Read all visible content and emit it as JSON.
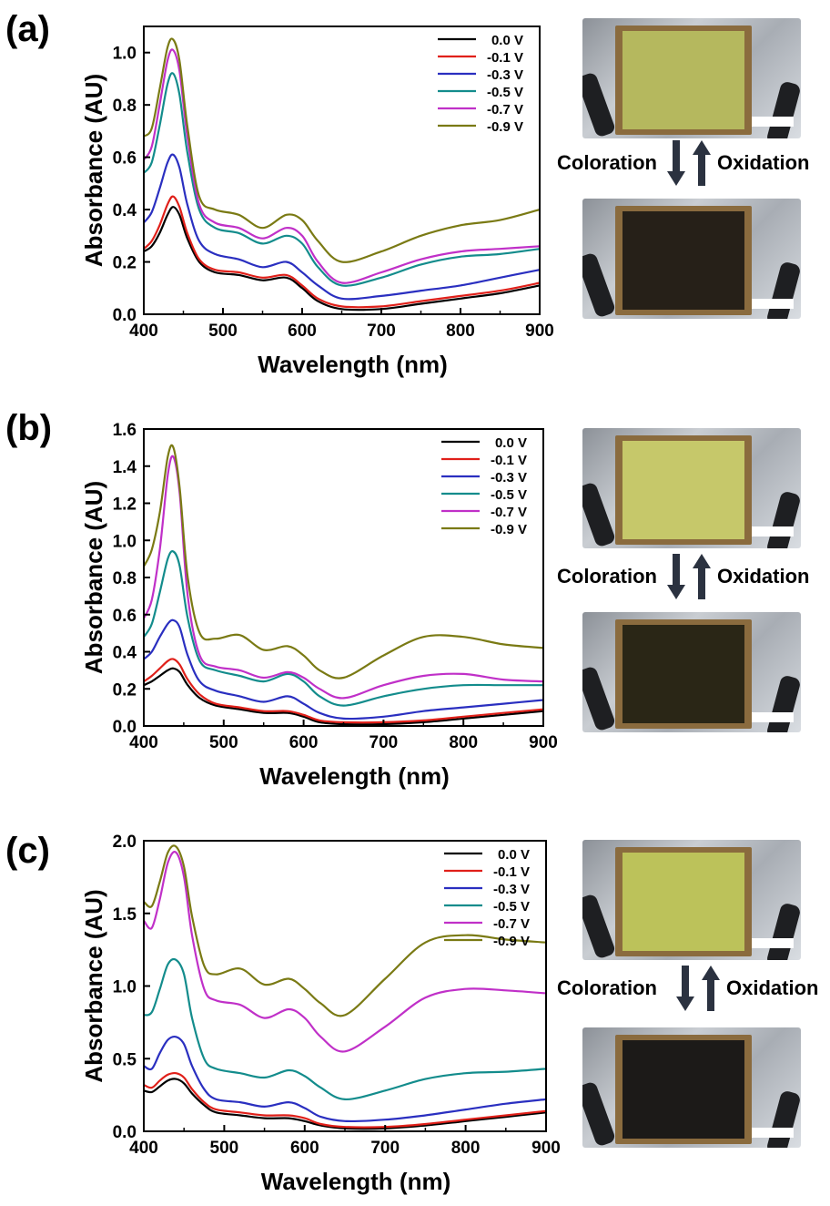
{
  "panels": [
    {
      "label": "(a)",
      "photo_top_color": "#b5b85e",
      "photo_bottom_color": "#262018",
      "coloration_label": "Coloration",
      "oxidation_label": "Oxidation"
    },
    {
      "label": "(b)",
      "photo_top_color": "#c6c86a",
      "photo_bottom_color": "#2a2616",
      "coloration_label": "Coloration",
      "oxidation_label": "Oxidation"
    },
    {
      "label": "(c)",
      "photo_top_color": "#bcc25a",
      "photo_bottom_color": "#1c1a18",
      "coloration_label": "Coloration",
      "oxidation_label": "Oxidation"
    }
  ],
  "colors": {
    "0.0 V": "#000000",
    "-0.1 V": "#e0201a",
    "-0.3 V": "#2a2fc0",
    "-0.5 V": "#138c8c",
    "-0.7 V": "#c030c8",
    "-0.9 V": "#7a7a14"
  },
  "chart_data": [
    {
      "type": "line",
      "xlabel": "Wavelength (nm)",
      "ylabel": "Absorbance (AU)",
      "xlim": [
        400,
        900
      ],
      "ylim": [
        0,
        1.1
      ],
      "xticks": [
        400,
        500,
        600,
        700,
        800,
        900
      ],
      "yticks": [
        0.0,
        0.2,
        0.4,
        0.6,
        0.8,
        1.0
      ],
      "ytick_labels": [
        "0.0",
        "0.2",
        "0.4",
        "0.6",
        "0.8",
        "1.0"
      ],
      "legend_position": "top-right",
      "x": [
        400,
        410,
        420,
        430,
        437,
        445,
        455,
        470,
        490,
        520,
        550,
        580,
        600,
        620,
        650,
        700,
        750,
        800,
        850,
        900
      ],
      "series": [
        {
          "name": "0.0 V",
          "values": [
            0.24,
            0.26,
            0.31,
            0.38,
            0.41,
            0.38,
            0.29,
            0.2,
            0.16,
            0.15,
            0.13,
            0.14,
            0.1,
            0.05,
            0.02,
            0.02,
            0.04,
            0.06,
            0.08,
            0.11
          ]
        },
        {
          "name": "-0.1 V",
          "values": [
            0.25,
            0.28,
            0.34,
            0.42,
            0.45,
            0.41,
            0.31,
            0.21,
            0.17,
            0.16,
            0.14,
            0.15,
            0.11,
            0.06,
            0.03,
            0.03,
            0.05,
            0.07,
            0.09,
            0.12
          ]
        },
        {
          "name": "-0.3 V",
          "values": [
            0.35,
            0.39,
            0.48,
            0.58,
            0.61,
            0.56,
            0.42,
            0.28,
            0.23,
            0.21,
            0.18,
            0.2,
            0.16,
            0.11,
            0.06,
            0.07,
            0.09,
            0.11,
            0.14,
            0.17
          ]
        },
        {
          "name": "-0.5 V",
          "values": [
            0.54,
            0.58,
            0.72,
            0.88,
            0.92,
            0.84,
            0.62,
            0.4,
            0.33,
            0.31,
            0.27,
            0.3,
            0.27,
            0.18,
            0.11,
            0.14,
            0.19,
            0.22,
            0.23,
            0.25
          ]
        },
        {
          "name": "-0.7 V",
          "values": [
            0.59,
            0.64,
            0.8,
            0.97,
            1.01,
            0.93,
            0.68,
            0.42,
            0.35,
            0.33,
            0.29,
            0.33,
            0.3,
            0.2,
            0.12,
            0.16,
            0.21,
            0.24,
            0.25,
            0.26
          ]
        },
        {
          "name": "-0.9 V",
          "values": [
            0.68,
            0.71,
            0.86,
            1.02,
            1.05,
            0.97,
            0.72,
            0.45,
            0.4,
            0.38,
            0.33,
            0.38,
            0.36,
            0.28,
            0.2,
            0.24,
            0.3,
            0.34,
            0.36,
            0.4
          ]
        }
      ]
    },
    {
      "type": "line",
      "xlabel": "Wavelength (nm)",
      "ylabel": "Absorbance (AU)",
      "xlim": [
        400,
        900
      ],
      "ylim": [
        0,
        1.6
      ],
      "xticks": [
        400,
        500,
        600,
        700,
        800,
        900
      ],
      "yticks": [
        0.0,
        0.2,
        0.4,
        0.6,
        0.8,
        1.0,
        1.2,
        1.4,
        1.6
      ],
      "ytick_labels": [
        "0.0",
        "0.2",
        "0.4",
        "0.6",
        "0.8",
        "1.0",
        "1.2",
        "1.4",
        "1.6"
      ],
      "legend_position": "top-right",
      "x": [
        400,
        410,
        420,
        430,
        437,
        445,
        455,
        470,
        490,
        520,
        550,
        580,
        600,
        620,
        650,
        700,
        750,
        800,
        850,
        900
      ],
      "series": [
        {
          "name": "0.0 V",
          "values": [
            0.22,
            0.24,
            0.27,
            0.3,
            0.31,
            0.29,
            0.22,
            0.15,
            0.11,
            0.09,
            0.07,
            0.07,
            0.05,
            0.02,
            0.01,
            0.01,
            0.02,
            0.04,
            0.06,
            0.08
          ]
        },
        {
          "name": "-0.1 V",
          "values": [
            0.24,
            0.27,
            0.31,
            0.35,
            0.36,
            0.33,
            0.25,
            0.17,
            0.12,
            0.1,
            0.08,
            0.08,
            0.06,
            0.03,
            0.02,
            0.02,
            0.03,
            0.05,
            0.07,
            0.09
          ]
        },
        {
          "name": "-0.3 V",
          "values": [
            0.36,
            0.4,
            0.48,
            0.55,
            0.57,
            0.53,
            0.38,
            0.24,
            0.19,
            0.16,
            0.13,
            0.16,
            0.12,
            0.07,
            0.04,
            0.05,
            0.08,
            0.1,
            0.12,
            0.14
          ]
        },
        {
          "name": "-0.5 V",
          "values": [
            0.48,
            0.55,
            0.72,
            0.9,
            0.94,
            0.86,
            0.58,
            0.35,
            0.3,
            0.27,
            0.24,
            0.28,
            0.24,
            0.16,
            0.11,
            0.16,
            0.2,
            0.22,
            0.22,
            0.22
          ]
        },
        {
          "name": "-0.7 V",
          "values": [
            0.58,
            0.68,
            0.95,
            1.35,
            1.45,
            1.25,
            0.7,
            0.38,
            0.32,
            0.3,
            0.26,
            0.29,
            0.26,
            0.2,
            0.15,
            0.22,
            0.27,
            0.28,
            0.25,
            0.24
          ]
        },
        {
          "name": "-0.9 V",
          "values": [
            0.86,
            0.95,
            1.15,
            1.45,
            1.5,
            1.28,
            0.8,
            0.5,
            0.47,
            0.49,
            0.41,
            0.43,
            0.38,
            0.3,
            0.26,
            0.38,
            0.48,
            0.48,
            0.44,
            0.42
          ]
        }
      ]
    },
    {
      "type": "line",
      "xlabel": "Wavelength (nm)",
      "ylabel": "Absorbance (AU)",
      "xlim": [
        400,
        900
      ],
      "ylim": [
        0,
        2.0
      ],
      "xticks": [
        400,
        500,
        600,
        700,
        800,
        900
      ],
      "yticks": [
        0.0,
        0.5,
        1.0,
        1.5,
        2.0
      ],
      "ytick_labels": [
        "0.0",
        "0.5",
        "1.0",
        "1.5",
        "2.0"
      ],
      "legend_position": "top-right",
      "x": [
        400,
        410,
        420,
        430,
        440,
        450,
        460,
        475,
        490,
        520,
        550,
        580,
        600,
        620,
        650,
        700,
        750,
        800,
        850,
        900
      ],
      "series": [
        {
          "name": "0.0 V",
          "values": [
            0.28,
            0.27,
            0.31,
            0.35,
            0.36,
            0.33,
            0.26,
            0.18,
            0.13,
            0.11,
            0.09,
            0.09,
            0.07,
            0.04,
            0.02,
            0.02,
            0.04,
            0.07,
            0.1,
            0.13
          ]
        },
        {
          "name": "-0.1 V",
          "values": [
            0.32,
            0.3,
            0.35,
            0.39,
            0.4,
            0.37,
            0.29,
            0.2,
            0.15,
            0.13,
            0.11,
            0.11,
            0.09,
            0.05,
            0.03,
            0.03,
            0.05,
            0.08,
            0.11,
            0.14
          ]
        },
        {
          "name": "-0.3 V",
          "values": [
            0.45,
            0.43,
            0.54,
            0.63,
            0.65,
            0.6,
            0.45,
            0.29,
            0.22,
            0.2,
            0.17,
            0.2,
            0.16,
            0.1,
            0.07,
            0.08,
            0.11,
            0.15,
            0.19,
            0.22
          ]
        },
        {
          "name": "-0.5 V",
          "values": [
            0.8,
            0.82,
            0.98,
            1.15,
            1.18,
            1.08,
            0.78,
            0.5,
            0.43,
            0.4,
            0.37,
            0.42,
            0.38,
            0.3,
            0.22,
            0.28,
            0.36,
            0.4,
            0.41,
            0.43
          ]
        },
        {
          "name": "-0.7 V",
          "values": [
            1.45,
            1.4,
            1.6,
            1.85,
            1.92,
            1.75,
            1.35,
            0.98,
            0.9,
            0.87,
            0.78,
            0.84,
            0.78,
            0.65,
            0.55,
            0.72,
            0.92,
            0.98,
            0.97,
            0.95
          ]
        },
        {
          "name": "-0.9 V",
          "values": [
            1.58,
            1.55,
            1.72,
            1.92,
            1.96,
            1.82,
            1.48,
            1.14,
            1.08,
            1.12,
            1.01,
            1.05,
            0.98,
            0.88,
            0.8,
            1.05,
            1.3,
            1.35,
            1.32,
            1.3
          ]
        }
      ]
    }
  ]
}
